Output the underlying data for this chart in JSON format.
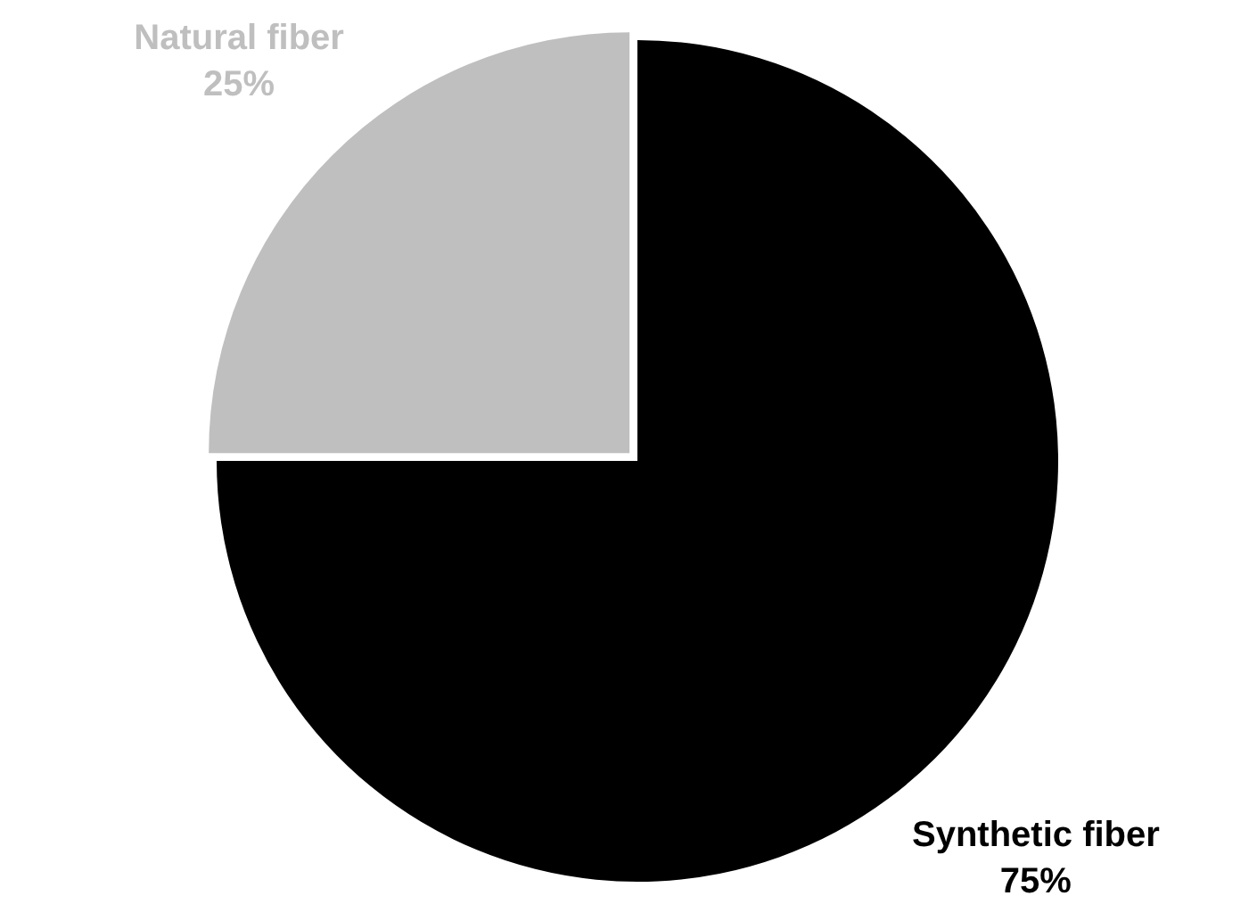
{
  "chart_data": {
    "type": "pie",
    "categories": [
      "Synthetic fiber",
      "Natural fiber"
    ],
    "values": [
      75,
      25
    ],
    "colors": [
      "#000000",
      "#bfbfbf"
    ],
    "value_labels": [
      "75%",
      "25%"
    ],
    "legend": false
  }
}
